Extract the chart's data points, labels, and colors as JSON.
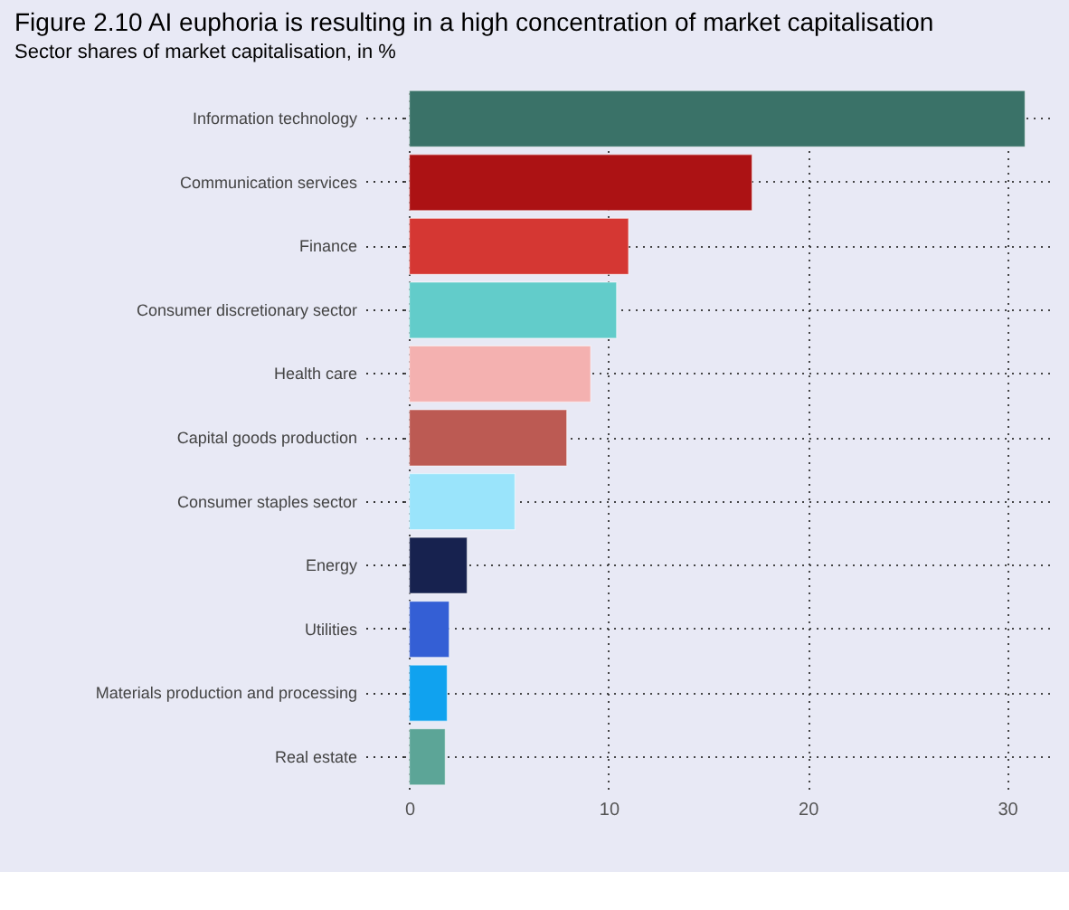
{
  "chart_data": {
    "type": "bar",
    "orientation": "horizontal",
    "title": "Figure 2.10 AI euphoria is resulting in a high concentration of market capitalisation",
    "subtitle": "Sector shares of market capitalisation, in %",
    "categories": [
      "Information technology",
      "Communication services",
      "Finance",
      "Consumer discretionary sector",
      "Health care",
      "Capital goods production",
      "Consumer staples sector",
      "Energy",
      "Utilities",
      "Materials production and processing",
      "Real estate"
    ],
    "values": [
      30.9,
      17.2,
      11.0,
      10.4,
      9.1,
      7.9,
      5.3,
      2.9,
      2.0,
      1.9,
      1.8
    ],
    "colors": [
      "#3a7268",
      "#ac1214",
      "#d53733",
      "#62ccca",
      "#f4b1b0",
      "#bc5a53",
      "#9ae4fb",
      "#17224f",
      "#345fd5",
      "#10a2ef",
      "#5ca597"
    ],
    "xlim": [
      -0.3,
      32.2
    ],
    "xticks": [
      0,
      10,
      20,
      30
    ],
    "grid": true
  }
}
